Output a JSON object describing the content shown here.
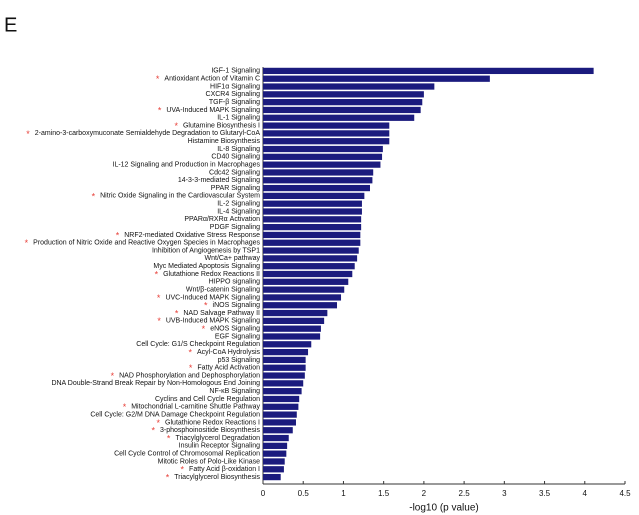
{
  "chart_data": {
    "type": "hbar",
    "panel_label": "E",
    "xlabel": "-log10 (p value)",
    "categories": [
      "IGF-1 Signaling",
      "Antioxidant Action of Vitamin C",
      "HIF1α Signaling",
      "CXCR4 Signaling",
      "TGF-β Signaling",
      "UVA-Induced MAPK Signaling",
      "IL-1 Signaling",
      "Glutamine Biosynthesis I",
      "2-amino-3-carboxymuconate Semialdehyde Degradation to Glutaryl-CoA",
      "Histamine Biosynthesis",
      "IL-8 Signaling",
      "CD40 Signaling",
      "IL-12 Signaling and Production in Macrophages",
      "Cdc42 Signaling",
      "14-3-3-mediated Signaling",
      "PPAR Signaling",
      "Nitric Oxide Signaling in the Cardiovascular System",
      "IL-2 Signaling",
      "IL-4 Signaling",
      "PPARα/RXRα Activation",
      "PDGF Signaling",
      "NRF2-mediated Oxidative Stress Response",
      "Production of Nitric Oxide and Reactive Oxygen Species in Macrophages",
      "Inhibition of Angiogenesis by TSP1",
      "Wnt/Ca+ pathway",
      "Myc Mediated Apoptosis Signaling",
      "Glutathione Redox Reactions II",
      "HIPPO signaling",
      "Wnt/β-catenin Signaling",
      "UVC-Induced MAPK Signaling",
      "iNOS Signaling",
      "NAD Salvage Pathway II",
      "UVB-Induced MAPK Signaling",
      "eNOS Signaling",
      "EGF Signaling",
      "Cell Cycle: G1/S Checkpoint Regulation",
      "Acyl-CoA Hydrolysis",
      "p53 Signaling",
      "Fatty Acid Activation",
      "NAD Phosphorylation and Dephosphorylation",
      "DNA Double-Strand Break Repair by Non-Homologous End Joining",
      "NF-κB Signaling",
      "Cyclins and Cell Cycle Regulation",
      "Mitochondrial L-carnitine Shuttle Pathway",
      "Cell Cycle: G2/M DNA Damage Checkpoint Regulation",
      "Glutathione Redox Reactions I",
      "3-phosphoinositide Biosynthesis",
      "Triacylglycerol Degradation",
      "Insulin Receptor Signaling",
      "Cell Cycle Control of Chromosomal Replication",
      "Mitotic Roles of Polo-Like Kinase",
      "Fatty Acid β-oxidation I",
      "Triacylglycerol Biosynthesis"
    ],
    "values": [
      4.11,
      2.82,
      2.13,
      2.0,
      1.98,
      1.96,
      1.88,
      1.57,
      1.57,
      1.57,
      1.49,
      1.48,
      1.46,
      1.37,
      1.36,
      1.33,
      1.26,
      1.23,
      1.23,
      1.22,
      1.22,
      1.21,
      1.21,
      1.19,
      1.17,
      1.14,
      1.11,
      1.06,
      1.01,
      0.97,
      0.92,
      0.8,
      0.76,
      0.72,
      0.71,
      0.6,
      0.56,
      0.53,
      0.53,
      0.52,
      0.5,
      0.48,
      0.45,
      0.44,
      0.42,
      0.41,
      0.37,
      0.32,
      0.3,
      0.29,
      0.27,
      0.26,
      0.22
    ],
    "highlight_symbol": "*",
    "highlight_color": "#e8413a",
    "highlighted": [
      false,
      true,
      false,
      false,
      false,
      true,
      false,
      true,
      true,
      false,
      false,
      false,
      false,
      false,
      false,
      false,
      true,
      false,
      false,
      false,
      false,
      true,
      true,
      false,
      false,
      false,
      true,
      false,
      false,
      true,
      true,
      true,
      true,
      true,
      false,
      false,
      true,
      false,
      true,
      true,
      false,
      false,
      false,
      true,
      false,
      true,
      true,
      true,
      false,
      false,
      false,
      true,
      true
    ],
    "color": "#1b1b7e",
    "xlim": [
      0,
      4.5
    ],
    "xticks": [
      0,
      0.5,
      1,
      1.5,
      2,
      2.5,
      3,
      3.5,
      4,
      4.5
    ]
  }
}
